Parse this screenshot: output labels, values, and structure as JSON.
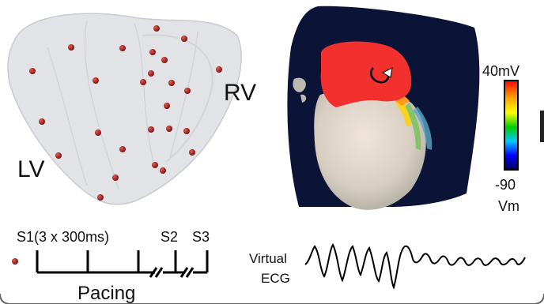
{
  "labels": {
    "lv": "LV",
    "rv": "RV",
    "scale_max": "40mV",
    "scale_min": "-90",
    "scale_unit": "Vm",
    "s1": "S1(3 x 300ms)",
    "s2": "S2",
    "s3": "S3",
    "pacing": "Pacing",
    "virtual": "Virtual",
    "ecg": "ECG"
  },
  "colors": {
    "mesh": "#e2e3e6",
    "electrode": "#a41d1d",
    "background_dark": "#0b1437",
    "activation": "#f2302e",
    "tissue": "#cfc9bd"
  },
  "colorbar_stops": [
    "#ff0000",
    "#ff9900",
    "#ffff00",
    "#00d000",
    "#00c8ff",
    "#0000ff",
    "#000050"
  ],
  "icons": [
    "electrode-dot-icon",
    "reentry-arrow-icon"
  ]
}
